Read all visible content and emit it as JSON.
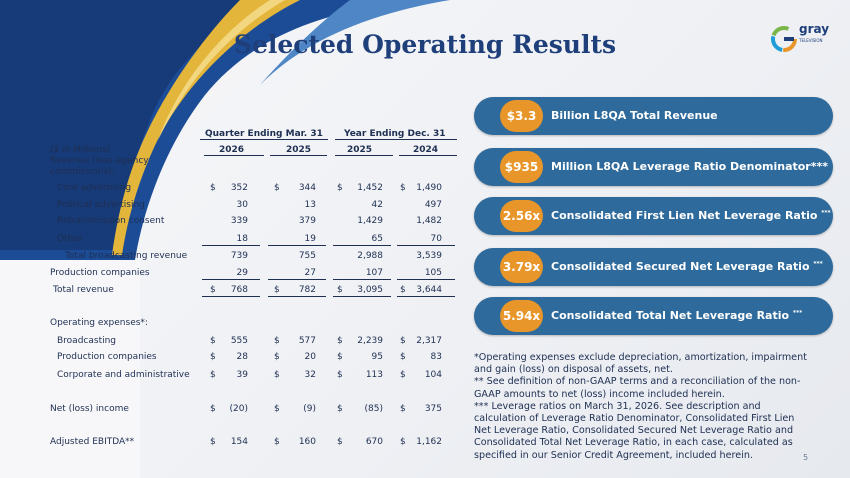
{
  "title": "Selected Operating Results",
  "logo": {
    "name": "gray",
    "tagline": "TELEVISION"
  },
  "table": {
    "group_headers": [
      "Quarter Ending Mar. 31",
      "Year Ending Dec. 31"
    ],
    "unit_label": "($ in Millions)",
    "columns": [
      "2026",
      "2025",
      "2025",
      "2024"
    ],
    "rows": [
      {
        "label": "Revenue (less agency commissions):",
        "values": [
          "",
          "",
          "",
          ""
        ],
        "currency": false
      },
      {
        "label": "Core advertising",
        "values": [
          "352",
          "344",
          "1,452",
          "1,490"
        ],
        "currency": true
      },
      {
        "label": "Political advertising",
        "values": [
          "30",
          "13",
          "42",
          "497"
        ],
        "currency": false
      },
      {
        "label": "Retransmission consent",
        "values": [
          "339",
          "379",
          "1,429",
          "1,482"
        ],
        "currency": false
      },
      {
        "label": "Other",
        "values": [
          "18",
          "19",
          "65",
          "70"
        ],
        "currency": false
      },
      {
        "label": "Total broadcasting revenue",
        "values": [
          "739",
          "755",
          "2,988",
          "3,539"
        ],
        "currency": false
      },
      {
        "label": "Production companies",
        "values": [
          "29",
          "27",
          "107",
          "105"
        ],
        "currency": false
      },
      {
        "label": "Total revenue",
        "values": [
          "768",
          "782",
          "3,095",
          "3,644"
        ],
        "currency": true
      },
      {
        "label": "Operating expenses*:",
        "values": [
          "",
          "",
          "",
          ""
        ],
        "currency": false
      },
      {
        "label": "Broadcasting",
        "values": [
          "555",
          "577",
          "2,239",
          "2,317"
        ],
        "currency": true
      },
      {
        "label": "Production companies",
        "values": [
          "28",
          "20",
          "95",
          "83"
        ],
        "currency": true
      },
      {
        "label": "Corporate and administrative",
        "values": [
          "39",
          "32",
          "113",
          "104"
        ],
        "currency": true
      },
      {
        "label": "Net (loss) income",
        "values": [
          "(20)",
          "(9)",
          "(85)",
          "375"
        ],
        "currency": true
      },
      {
        "label": "Adjusted EBITDA**",
        "values": [
          "154",
          "160",
          "670",
          "1,162"
        ],
        "currency": true
      }
    ],
    "currency_symbol": "$"
  },
  "highlights": [
    {
      "value": "$3.3",
      "text": "Billion L8QA Total Revenue",
      "mark": ""
    },
    {
      "value": "$935",
      "text": "Million L8QA Leverage Ratio Denominator***",
      "mark": ""
    },
    {
      "value": "2.56x",
      "text": "Consolidated First Lien Net Leverage Ratio",
      "mark": "***"
    },
    {
      "value": "3.79x",
      "text": "Consolidated Secured Net Leverage Ratio",
      "mark": "***"
    },
    {
      "value": "5.94x",
      "text": "Consolidated Total Net Leverage Ratio",
      "mark": "***"
    }
  ],
  "footnotes": [
    "*Operating expenses exclude depreciation, amortization, impairment and gain (loss) on disposal of assets, net.",
    "** See definition of non-GAAP terms and a reconciliation of the non-GAAP amounts to net (loss) income included herein.",
    "*** Leverage ratios on March 31, 2026. See description and calculation of Leverage Ratio Denominator, Consolidated First Lien Net Leverage Ratio, Consolidated Secured Net Leverage Ratio and Consolidated Total Net Leverage Ratio, in each case, calculated as specified in our Senior Credit Agreement, included herein."
  ],
  "page_number": "5",
  "colors": {
    "navy": "#1e3f7a",
    "pill": "#2e6a9b",
    "accent": "#e8962a",
    "gold": "#e3b53a"
  }
}
